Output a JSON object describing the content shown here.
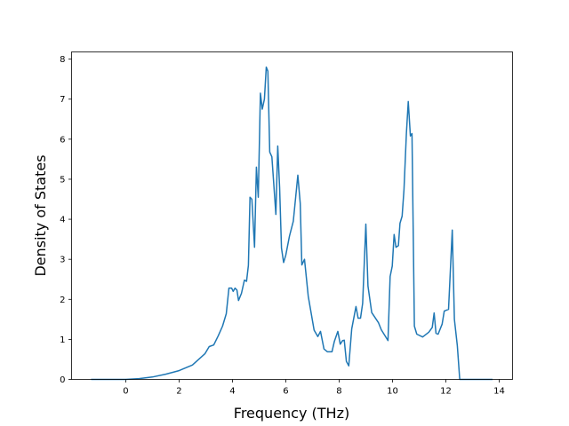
{
  "chart_data": {
    "type": "line",
    "title": "",
    "xlabel": "Frequency (THz)",
    "ylabel": "Density of States",
    "xlim": [
      -2.03,
      14.5
    ],
    "ylim": [
      0,
      8.18
    ],
    "xticks": [
      0,
      2,
      4,
      6,
      8,
      10,
      12,
      14
    ],
    "yticks": [
      0,
      1,
      2,
      3,
      4,
      5,
      6,
      7,
      8
    ],
    "grid": false,
    "color": "#1f77b4",
    "series": [
      {
        "name": "DOS",
        "x": [
          -1.3,
          0,
          0.5,
          1,
          1.5,
          2,
          2.5,
          2.97,
          3.13,
          3.3,
          3.47,
          3.63,
          3.77,
          3.87,
          3.97,
          4.03,
          4.1,
          4.17,
          4.23,
          4.34,
          4.45,
          4.53,
          4.6,
          4.66,
          4.73,
          4.83,
          4.9,
          4.97,
          5.05,
          5.12,
          5.2,
          5.27,
          5.33,
          5.4,
          5.48,
          5.63,
          5.7,
          5.77,
          5.84,
          5.92,
          6.0,
          6.14,
          6.28,
          6.45,
          6.54,
          6.6,
          6.7,
          6.84,
          7.06,
          7.2,
          7.3,
          7.43,
          7.56,
          7.73,
          7.82,
          7.95,
          8.04,
          8.13,
          8.19,
          8.27,
          8.36,
          8.47,
          8.63,
          8.71,
          8.8,
          8.88,
          9.0,
          9.08,
          9.22,
          9.47,
          9.58,
          9.83,
          9.91,
          9.99,
          10.06,
          10.13,
          10.22,
          10.28,
          10.36,
          10.43,
          10.52,
          10.59,
          10.67,
          10.73,
          10.82,
          10.91,
          11.13,
          11.36,
          11.49,
          11.56,
          11.63,
          11.71,
          11.86,
          11.94,
          12.1,
          12.24,
          12.32,
          12.43,
          12.52,
          13.75
        ],
        "y": [
          0,
          0,
          0.02,
          0.06,
          0.13,
          0.22,
          0.36,
          0.64,
          0.82,
          0.86,
          1.09,
          1.33,
          1.64,
          2.28,
          2.28,
          2.2,
          2.28,
          2.23,
          1.97,
          2.15,
          2.48,
          2.45,
          2.85,
          4.55,
          4.5,
          3.3,
          5.3,
          4.55,
          7.15,
          6.75,
          7.0,
          7.8,
          7.7,
          5.68,
          5.56,
          4.12,
          5.83,
          4.8,
          3.28,
          2.92,
          3.1,
          3.58,
          3.95,
          5.1,
          4.4,
          2.86,
          3.0,
          2.08,
          1.23,
          1.07,
          1.2,
          0.76,
          0.69,
          0.69,
          0.95,
          1.2,
          0.88,
          0.97,
          0.98,
          0.45,
          0.34,
          1.26,
          1.82,
          1.53,
          1.53,
          1.9,
          3.88,
          2.33,
          1.67,
          1.42,
          1.24,
          0.97,
          2.57,
          2.83,
          3.62,
          3.3,
          3.34,
          3.9,
          4.08,
          4.74,
          6.14,
          6.94,
          6.08,
          6.14,
          1.33,
          1.13,
          1.06,
          1.18,
          1.3,
          1.66,
          1.15,
          1.13,
          1.38,
          1.71,
          1.75,
          3.73,
          1.5,
          0.84,
          0,
          0
        ]
      }
    ]
  }
}
